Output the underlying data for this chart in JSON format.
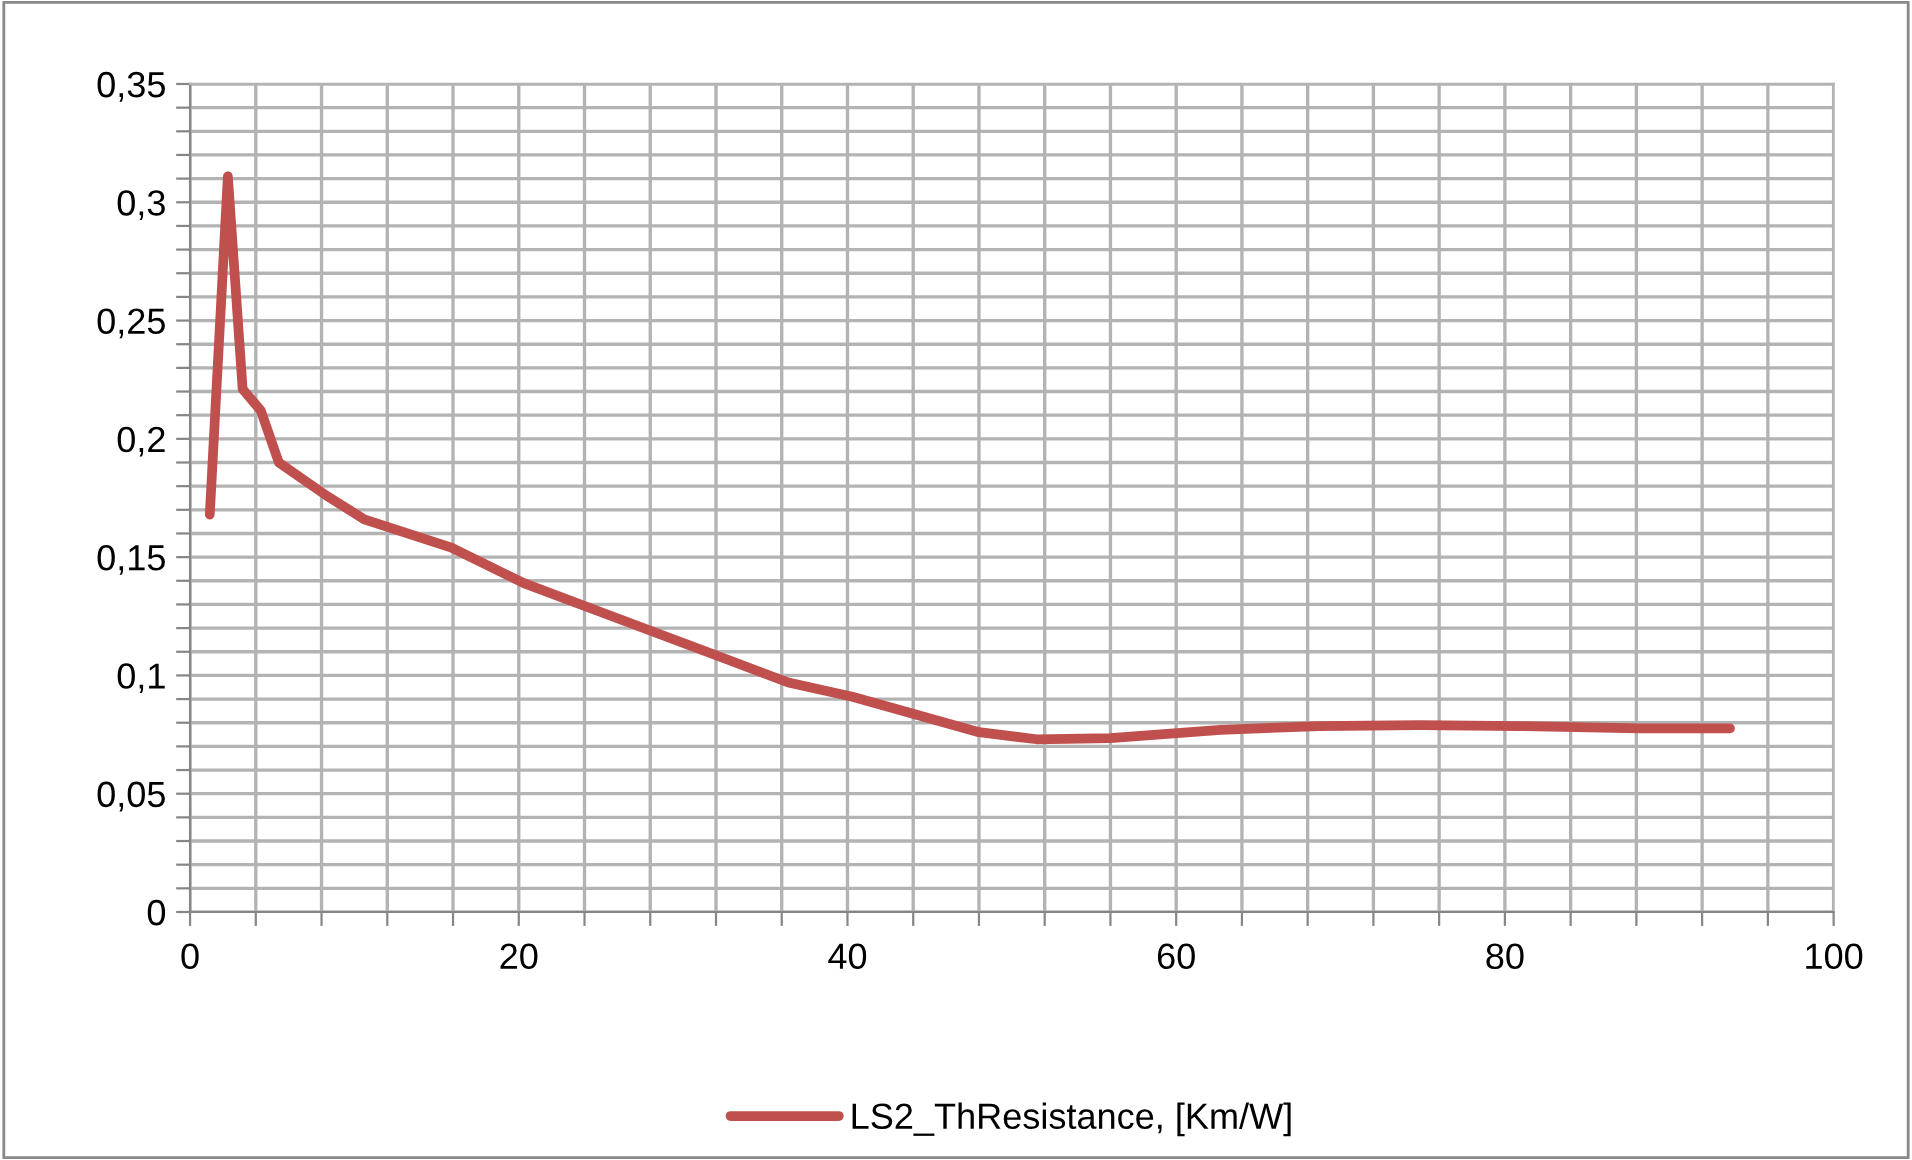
{
  "chart_data": {
    "type": "line",
    "x": [
      1.2,
      2.3,
      3.2,
      4.3,
      5.4,
      8.3,
      10.6,
      15.9,
      20.3,
      24.9,
      32.2,
      36.4,
      40.3,
      48,
      51.5,
      56,
      62.7,
      68.7,
      74.8,
      80.9,
      88.2,
      93.7
    ],
    "series": [
      {
        "name": "LS2_ThResistance, [Km/W]",
        "color": "#c0504d",
        "values": [
          0.168,
          0.311,
          0.221,
          0.212,
          0.19,
          0.176,
          0.166,
          0.154,
          0.139,
          0.127,
          0.108,
          0.097,
          0.091,
          0.076,
          0.073,
          0.0735,
          0.077,
          0.0786,
          0.079,
          0.0786,
          0.0776,
          0.0776
        ]
      }
    ],
    "xlim": [
      0,
      100
    ],
    "xticks": [
      0,
      {
        "value": 4,
        "label": null
      },
      {
        "value": 8,
        "label": null
      },
      {
        "value": 12,
        "label": null
      },
      {
        "value": 16,
        "label": null
      },
      20,
      {
        "value": 24,
        "label": null
      },
      {
        "value": 28,
        "label": null
      },
      {
        "value": 32,
        "label": null
      },
      {
        "value": 36,
        "label": null
      },
      40,
      {
        "value": 44,
        "label": null
      },
      {
        "value": 48,
        "label": null
      },
      {
        "value": 52,
        "label": null
      },
      {
        "value": 56,
        "label": null
      },
      60,
      {
        "value": 64,
        "label": null
      },
      {
        "value": 68,
        "label": null
      },
      {
        "value": 72,
        "label": null
      },
      {
        "value": 76,
        "label": null
      },
      80,
      {
        "value": 84,
        "label": null
      },
      {
        "value": 88,
        "label": null
      },
      {
        "value": 92,
        "label": null
      },
      {
        "value": 96,
        "label": null
      },
      100
    ],
    "ylim": [
      0,
      0.35
    ],
    "yticks": [
      0,
      {
        "value": 0.01,
        "label": null
      },
      {
        "value": 0.02,
        "label": null
      },
      {
        "value": 0.03,
        "label": null
      },
      {
        "value": 0.04,
        "label": null
      },
      {
        "value": 0.05,
        "label": "0,05"
      },
      {
        "value": 0.06,
        "label": null
      },
      {
        "value": 0.07,
        "label": null
      },
      {
        "value": 0.08,
        "label": null
      },
      {
        "value": 0.09,
        "label": null
      },
      {
        "value": 0.1,
        "label": "0,1"
      },
      {
        "value": 0.11,
        "label": null
      },
      {
        "value": 0.12,
        "label": null
      },
      {
        "value": 0.13,
        "label": null
      },
      {
        "value": 0.14,
        "label": null
      },
      {
        "value": 0.15,
        "label": "0,15"
      },
      {
        "value": 0.16,
        "label": null
      },
      {
        "value": 0.17,
        "label": null
      },
      {
        "value": 0.18,
        "label": null
      },
      {
        "value": 0.19,
        "label": null
      },
      {
        "value": 0.2,
        "label": "0,2"
      },
      {
        "value": 0.21,
        "label": null
      },
      {
        "value": 0.22,
        "label": null
      },
      {
        "value": 0.23,
        "label": null
      },
      {
        "value": 0.24,
        "label": null
      },
      {
        "value": 0.25,
        "label": "0,25"
      },
      {
        "value": 0.26,
        "label": null
      },
      {
        "value": 0.27,
        "label": null
      },
      {
        "value": 0.28,
        "label": null
      },
      {
        "value": 0.29,
        "label": null
      },
      {
        "value": 0.3,
        "label": "0,3"
      },
      {
        "value": 0.31,
        "label": null
      },
      {
        "value": 0.32,
        "label": null
      },
      {
        "value": 0.33,
        "label": null
      },
      {
        "value": 0.34,
        "label": null
      },
      {
        "value": 0.35,
        "label": "0,35"
      }
    ],
    "grid": true,
    "legend": "bottom",
    "marker": "none",
    "line_style": "solid"
  }
}
